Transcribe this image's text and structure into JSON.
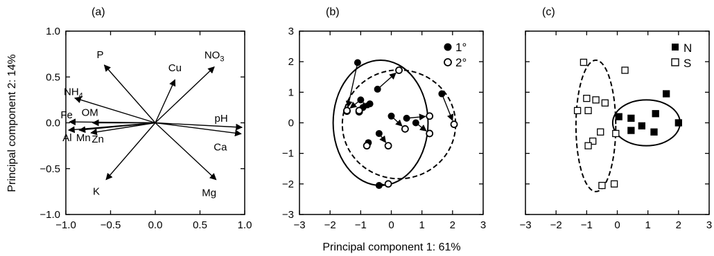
{
  "figure": {
    "shared_xlabel": "Principal component 1: 61%",
    "shared_ylabel": "Principal component 2: 14%"
  },
  "chart_data": [
    {
      "panel": "(a)",
      "type": "biplot",
      "xlim": [
        -1.0,
        1.0
      ],
      "ylim": [
        -1.0,
        1.0
      ],
      "xticks": [
        "−1.0",
        "−0.5",
        "0.0",
        "0.5",
        "1.0"
      ],
      "yticks": [
        "−1.0",
        "−0.5",
        "0.0",
        "0.5",
        "1.0"
      ],
      "xtick_values": [
        -1.0,
        -0.5,
        0.0,
        0.5,
        1.0
      ],
      "ytick_values": [
        -1.0,
        -0.5,
        0.0,
        0.5,
        1.0
      ],
      "vectors": [
        {
          "name": "P",
          "sub": "",
          "x": -0.57,
          "y": 0.63
        },
        {
          "name": "Cu",
          "sub": "",
          "x": 0.22,
          "y": 0.47
        },
        {
          "name": "NO",
          "sub": "3",
          "x": 0.66,
          "y": 0.61
        },
        {
          "name": "NH",
          "sub": "4",
          "x": -0.9,
          "y": 0.27
        },
        {
          "name": "Fe",
          "sub": "",
          "x": -0.96,
          "y": 0.01
        },
        {
          "name": "OM",
          "sub": "",
          "x": -0.7,
          "y": 0.0
        },
        {
          "name": "pH",
          "sub": "",
          "x": 0.97,
          "y": -0.05
        },
        {
          "name": "Al",
          "sub": "",
          "x": -0.97,
          "y": -0.08
        },
        {
          "name": "Mn",
          "sub": "",
          "x": -0.85,
          "y": -0.08
        },
        {
          "name": "Zn",
          "sub": "",
          "x": -0.72,
          "y": -0.11
        },
        {
          "name": "Ca",
          "sub": "",
          "x": 0.96,
          "y": -0.12
        },
        {
          "name": "K",
          "sub": "",
          "x": -0.55,
          "y": -0.62
        },
        {
          "name": "Mg",
          "sub": "",
          "x": 0.68,
          "y": -0.62
        }
      ]
    },
    {
      "panel": "(b)",
      "type": "scatter",
      "xlim": [
        -3,
        3
      ],
      "ylim": [
        -3,
        3
      ],
      "xticks": [
        "−3",
        "−2",
        "−1",
        "0",
        "1",
        "2",
        "3"
      ],
      "yticks": [
        "−3",
        "−2",
        "−1",
        "0",
        "1",
        "2",
        "3"
      ],
      "xtick_values": [
        -3,
        -2,
        -1,
        0,
        1,
        2,
        3
      ],
      "ytick_values": [
        -3,
        -2,
        -1,
        0,
        1,
        2,
        3
      ],
      "legend": [
        {
          "label": "1°",
          "marker": "filled-circle"
        },
        {
          "label": "2°",
          "marker": "open-circle"
        }
      ],
      "pairs": [
        {
          "x1": -1.1,
          "y1": 1.97,
          "x2": -1.45,
          "y2": 0.38
        },
        {
          "x1": -1.0,
          "y1": 0.75,
          "x2": -1.45,
          "y2": 0.4
        },
        {
          "x1": -0.93,
          "y1": 0.5,
          "x2": -1.05,
          "y2": 0.36
        },
        {
          "x1": -0.7,
          "y1": 0.62,
          "x2": -1.05,
          "y2": 0.4
        },
        {
          "x1": -0.45,
          "y1": 1.1,
          "x2": 0.25,
          "y2": 1.72
        },
        {
          "x1": 0.0,
          "y1": 0.22,
          "x2": 0.45,
          "y2": -0.2
        },
        {
          "x1": 0.5,
          "y1": 0.15,
          "x2": 1.25,
          "y2": 0.22
        },
        {
          "x1": 0.8,
          "y1": 0.0,
          "x2": 1.25,
          "y2": -0.35
        },
        {
          "x1": 1.65,
          "y1": 0.95,
          "x2": 2.05,
          "y2": -0.05
        },
        {
          "x1": -0.75,
          "y1": -0.65,
          "x2": -0.8,
          "y2": -0.75
        },
        {
          "x1": -0.4,
          "y1": -0.35,
          "x2": -0.1,
          "y2": -0.75
        },
        {
          "x1": -0.4,
          "y1": -2.05,
          "x2": -0.1,
          "y2": -2.0
        }
      ],
      "ellipses": [
        {
          "group": "1°",
          "cx": -0.35,
          "cy": 0.0,
          "rx": 1.55,
          "ry": 2.05,
          "style": "solid"
        },
        {
          "group": "2°",
          "cx": 0.25,
          "cy": -0.05,
          "rx": 1.85,
          "ry": 1.78,
          "style": "dashed"
        }
      ]
    },
    {
      "panel": "(c)",
      "type": "scatter",
      "xlim": [
        -3,
        3
      ],
      "ylim": [
        -3,
        3
      ],
      "xticks": [
        "−3",
        "−2",
        "−1",
        "0",
        "1",
        "2",
        "3"
      ],
      "yticks": [],
      "xtick_values": [
        -3,
        -2,
        -1,
        0,
        1,
        2,
        3
      ],
      "ytick_values": [
        -3,
        -2,
        -1,
        0,
        1,
        2,
        3
      ],
      "legend": [
        {
          "label": "N",
          "marker": "filled-square"
        },
        {
          "label": "S",
          "marker": "open-square"
        }
      ],
      "series": [
        {
          "name": "N",
          "marker": "filled-square",
          "points": [
            {
              "x": 0.05,
              "y": 0.2
            },
            {
              "x": 0.45,
              "y": 0.15
            },
            {
              "x": 0.45,
              "y": -0.25
            },
            {
              "x": 0.8,
              "y": -0.1
            },
            {
              "x": 1.25,
              "y": 0.3
            },
            {
              "x": 1.2,
              "y": -0.3
            },
            {
              "x": 1.6,
              "y": 0.95
            },
            {
              "x": 2.0,
              "y": 0.0
            }
          ]
        },
        {
          "name": "S",
          "marker": "open-square",
          "points": [
            {
              "x": -1.1,
              "y": 1.98
            },
            {
              "x": 0.25,
              "y": 1.72
            },
            {
              "x": -1.0,
              "y": 0.8
            },
            {
              "x": -0.7,
              "y": 0.75
            },
            {
              "x": -0.4,
              "y": 0.65
            },
            {
              "x": -1.3,
              "y": 0.4
            },
            {
              "x": -0.95,
              "y": 0.4
            },
            {
              "x": -0.55,
              "y": -0.3
            },
            {
              "x": -0.8,
              "y": -0.6
            },
            {
              "x": -0.95,
              "y": -0.75
            },
            {
              "x": -0.05,
              "y": -0.35
            },
            {
              "x": -0.5,
              "y": -2.05
            },
            {
              "x": -0.1,
              "y": -2.0
            }
          ]
        }
      ],
      "ellipses": [
        {
          "group": "N",
          "cx": 0.95,
          "cy": 0.0,
          "rx": 1.1,
          "ry": 0.75,
          "style": "solid"
        },
        {
          "group": "S",
          "cx": -0.7,
          "cy": -0.1,
          "rx": 0.65,
          "ry": 2.15,
          "style": "dashed"
        }
      ]
    }
  ]
}
